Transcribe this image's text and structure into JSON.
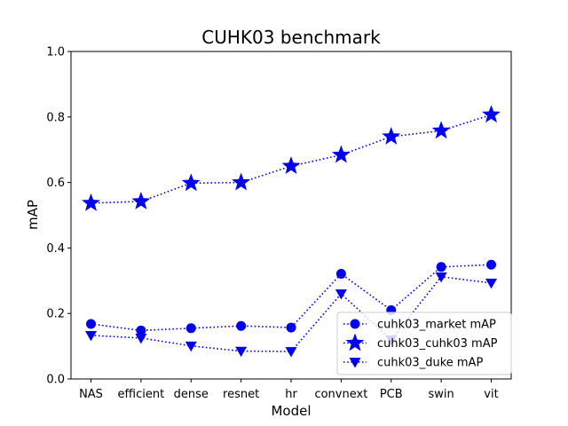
{
  "chart_data": {
    "type": "line",
    "title": "CUHK03 benchmark",
    "xlabel": "Model",
    "ylabel": "mAP",
    "categories": [
      "NAS",
      "efficient",
      "dense",
      "resnet",
      "hr",
      "convnext",
      "PCB",
      "swin",
      "vit"
    ],
    "ylim": [
      0.0,
      1.0
    ],
    "yticks": [
      "0.0",
      "0.2",
      "0.4",
      "0.6",
      "0.8",
      "1.0"
    ],
    "grid": false,
    "legend_position": "lower-right",
    "line_color": "#0000ee",
    "series": [
      {
        "name": "cuhk03_market mAP",
        "marker": "circle",
        "values": [
          0.168,
          0.148,
          0.155,
          0.162,
          0.157,
          0.321,
          0.21,
          0.342,
          0.349
        ]
      },
      {
        "name": "cuhk03_cuhk03 mAP",
        "marker": "star",
        "values": [
          0.537,
          0.542,
          0.598,
          0.6,
          0.65,
          0.684,
          0.74,
          0.758,
          0.807
        ]
      },
      {
        "name": "cuhk03_duke mAP",
        "marker": "triangle-down",
        "values": [
          0.133,
          0.125,
          0.101,
          0.085,
          0.084,
          0.26,
          0.12,
          0.312,
          0.293
        ]
      }
    ]
  }
}
